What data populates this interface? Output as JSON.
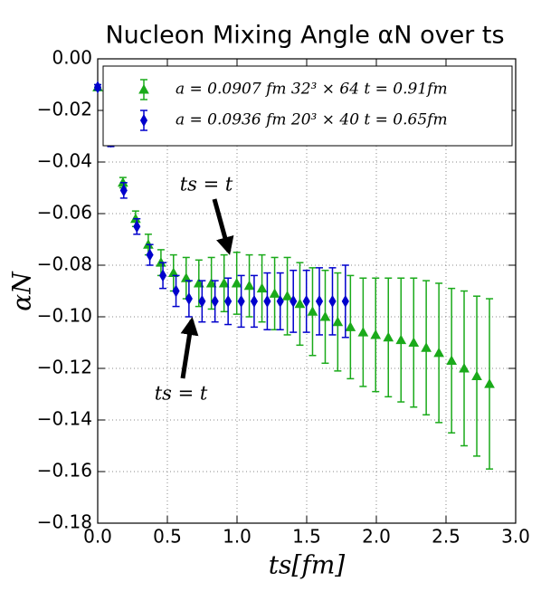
{
  "chart_data": {
    "type": "errorbar",
    "title": "Nucleon Mixing Angle αN over ts",
    "x_label": "ts[fm]",
    "y_label": "αN",
    "xlim": [
      0,
      3
    ],
    "ylim": [
      -0.18,
      0
    ],
    "xticks": [
      {
        "value": 0,
        "label": "0.0"
      },
      0.5,
      {
        "value": 1,
        "label": "1.0"
      },
      1.5,
      {
        "value": 2,
        "label": "2.0"
      },
      2.5,
      {
        "value": 3,
        "label": "3.0"
      }
    ],
    "yticks": [
      {
        "value": 0,
        "label": "0.00"
      },
      {
        "value": -0.02,
        "label": "−0.02"
      },
      {
        "value": -0.04,
        "label": "−0.04"
      },
      {
        "value": -0.06,
        "label": "−0.06"
      },
      {
        "value": -0.08,
        "label": "−0.08"
      },
      {
        "value": -0.1,
        "label": "−0.10"
      },
      {
        "value": -0.12,
        "label": "−0.12"
      },
      {
        "value": -0.14,
        "label": "−0.14"
      },
      {
        "value": -0.16,
        "label": "−0.16"
      },
      {
        "value": -0.18,
        "label": "−0.18"
      }
    ],
    "grid": true,
    "legend": "upper right",
    "annotations": [
      "ts = t",
      "ts = t"
    ],
    "series": [
      {
        "name": "a = 0.0907 fm 32³ × 64 t = 0.91fm",
        "color": "#1aaa1a",
        "marker": "triangle",
        "x": [
          0,
          0.091,
          0.181,
          0.272,
          0.363,
          0.454,
          0.544,
          0.635,
          0.726,
          0.816,
          0.907,
          0.998,
          1.088,
          1.179,
          1.27,
          1.361,
          1.451,
          1.542,
          1.633,
          1.723,
          1.814,
          1.905,
          1.995,
          2.086,
          2.177,
          2.268,
          2.358,
          2.449,
          2.54,
          2.63,
          2.721,
          2.812
        ],
        "values": [
          -0.011,
          -0.032,
          -0.048,
          -0.062,
          -0.072,
          -0.079,
          -0.083,
          -0.085,
          -0.087,
          -0.087,
          -0.087,
          -0.087,
          -0.088,
          -0.089,
          -0.091,
          -0.092,
          -0.095,
          -0.098,
          -0.1,
          -0.102,
          -0.104,
          -0.106,
          -0.107,
          -0.108,
          -0.109,
          -0.11,
          -0.112,
          -0.114,
          -0.117,
          -0.12,
          -0.123,
          -0.126
        ],
        "errors": [
          0.001,
          0.001,
          0.002,
          0.003,
          0.004,
          0.005,
          0.007,
          0.008,
          0.009,
          0.01,
          0.011,
          0.012,
          0.012,
          0.013,
          0.014,
          0.015,
          0.016,
          0.017,
          0.018,
          0.019,
          0.02,
          0.021,
          0.022,
          0.023,
          0.024,
          0.025,
          0.026,
          0.027,
          0.028,
          0.03,
          0.031,
          0.033
        ]
      },
      {
        "name": "a = 0.0936 fm 20³ × 40 t = 0.65fm",
        "color": "#0000cc",
        "marker": "diamond",
        "x": [
          0,
          0.094,
          0.187,
          0.281,
          0.374,
          0.468,
          0.562,
          0.655,
          0.749,
          0.842,
          0.936,
          1.03,
          1.123,
          1.217,
          1.31,
          1.404,
          1.498,
          1.591,
          1.685,
          1.778
        ],
        "values": [
          -0.011,
          -0.032,
          -0.051,
          -0.065,
          -0.076,
          -0.084,
          -0.09,
          -0.093,
          -0.094,
          -0.094,
          -0.094,
          -0.094,
          -0.094,
          -0.094,
          -0.094,
          -0.094,
          -0.094,
          -0.094,
          -0.094,
          -0.094
        ],
        "errors": [
          0.001,
          0.002,
          0.003,
          0.003,
          0.004,
          0.005,
          0.006,
          0.007,
          0.008,
          0.008,
          0.009,
          0.01,
          0.01,
          0.011,
          0.011,
          0.012,
          0.012,
          0.013,
          0.013,
          0.014
        ]
      }
    ]
  }
}
